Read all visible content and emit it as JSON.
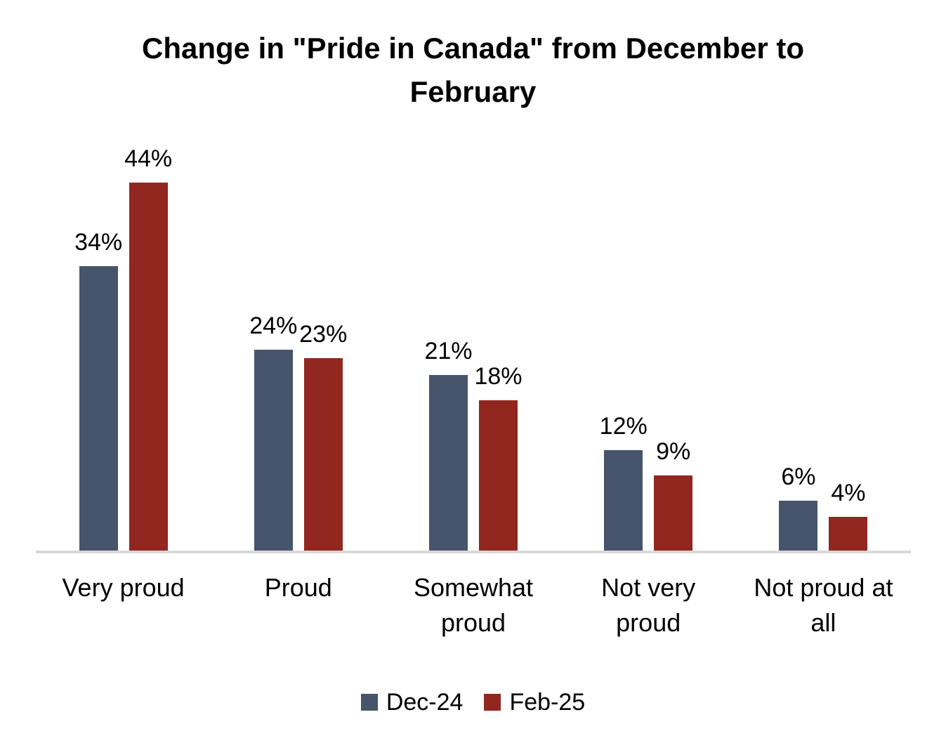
{
  "chart_data": {
    "type": "bar",
    "title": "Change in \"Pride in Canada\" from December to February",
    "title_lines": [
      "Change in \"Pride in Canada\" from December to",
      "February"
    ],
    "categories": [
      "Very proud",
      "Proud",
      "Somewhat proud",
      "Not very proud",
      "Not proud at all"
    ],
    "series": [
      {
        "name": "Dec-24",
        "color": "#46556B",
        "values": [
          34,
          24,
          21,
          12,
          6
        ]
      },
      {
        "name": "Feb-25",
        "color": "#92271F",
        "values": [
          44,
          23,
          18,
          9,
          4
        ]
      }
    ],
    "value_suffix": "%",
    "data_labels": true,
    "ylim": [
      0,
      50
    ],
    "grid": false,
    "legend_position": "bottom",
    "axis_line_color": "#D9D9D9",
    "text_color": "#000000",
    "background": "#FFFFFF"
  }
}
